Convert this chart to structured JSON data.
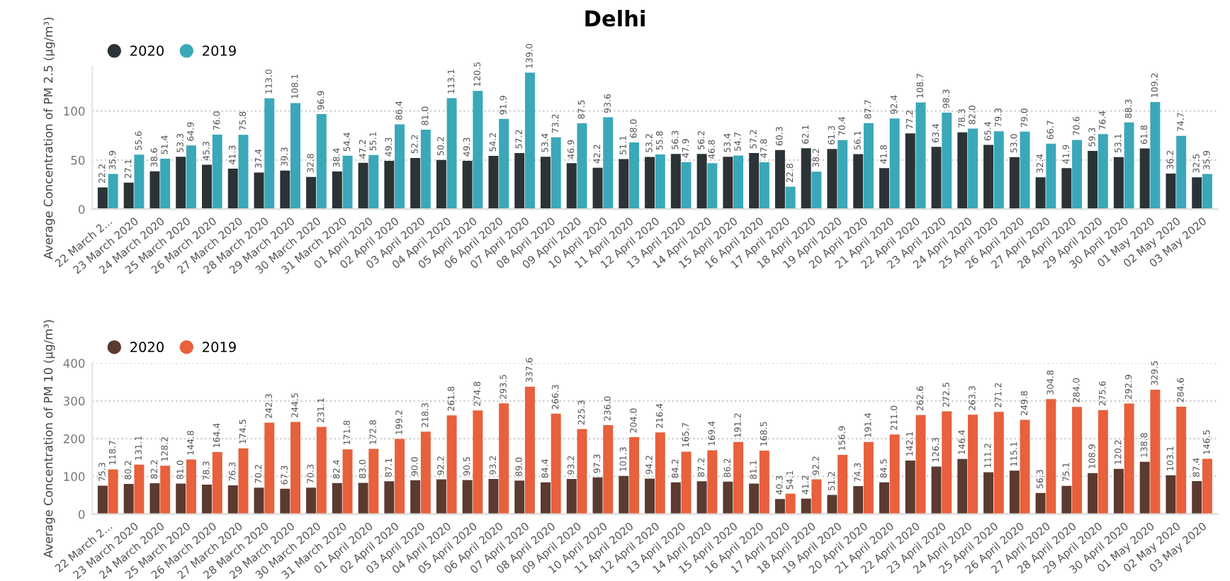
{
  "chart_data": [
    {
      "type": "bar",
      "title": "Delhi",
      "ylabel": "Average Concentration of PM 2.5 (µg/m³)",
      "categories": [
        "22 March 2...",
        "23 March 2020",
        "24 March 2020",
        "25 March 2020",
        "26 March 2020",
        "27 March 2020",
        "28 March 2020",
        "29 March 2020",
        "30 March 2020",
        "31 March 2020",
        "01 April 2020",
        "02 April 2020",
        "03 April 2020",
        "04 April 2020",
        "05 April 2020",
        "06 April 2020",
        "07 April 2020",
        "08 April 2020",
        "09 April 2020",
        "10 April 2020",
        "11 April 2020",
        "12 April 2020",
        "13 April 2020",
        "14 April 2020",
        "15 April 2020",
        "16 April 2020",
        "17 April 2020",
        "18 April 2020",
        "19 April 2020",
        "20 April 2020",
        "21 April 2020",
        "22 April 2020",
        "23 April 2020",
        "24 April 2020",
        "25 April 2020",
        "26 April 2020",
        "27 April 2020",
        "28 April 2020",
        "29 April 2020",
        "30 April 2020",
        "01 May 2020",
        "02 May 2020",
        "03 May 2020"
      ],
      "series": [
        {
          "name": "2020",
          "color": "#2b3336",
          "values": [
            22.2,
            27.1,
            38.6,
            53.3,
            45.3,
            41.3,
            37.4,
            39.3,
            32.8,
            38.4,
            47.2,
            49.3,
            52.2,
            50.2,
            49.3,
            54.2,
            57.2,
            53.4,
            46.9,
            42.2,
            51.1,
            53.2,
            56.3,
            56.2,
            53.4,
            57.2,
            60.3,
            62.1,
            61.3,
            56.1,
            41.8,
            77.2,
            63.4,
            78.3,
            65.4,
            53.0,
            32.4,
            41.9,
            59.3,
            53.1,
            61.8,
            36.2,
            32.5
          ],
          "value_labels": [
            "22.2",
            "27.1",
            "38.6",
            "53.3",
            "45.3",
            "41.3",
            "37.4",
            "39.3",
            "32.8",
            "38.4",
            "47.2",
            "49.3",
            "52.2",
            "50.2",
            "49.3",
            "54.2",
            "57.2",
            "53.4",
            "46.9",
            "42.2",
            "51.1",
            "53.2",
            "56.3",
            "56.2",
            "53.4",
            "57.2",
            "60.3",
            "62.1",
            "61.3",
            "56.1",
            "41.8",
            "77.2",
            "63.4",
            "78.3",
            "65.4",
            "53.0",
            "32.4",
            "41.9",
            "59.3",
            "53.1",
            "61.8",
            "36.2",
            "32.5"
          ]
        },
        {
          "name": "2019",
          "color": "#3aa8b8",
          "values": [
            35.9,
            55.6,
            51.4,
            64.9,
            76.0,
            75.8,
            113.0,
            108.1,
            96.9,
            54.4,
            55.1,
            86.4,
            81.0,
            113.1,
            120.5,
            91.9,
            139.0,
            73.2,
            87.5,
            93.6,
            68.0,
            55.8,
            47.9,
            46.8,
            54.7,
            47.8,
            22.8,
            38.2,
            70.4,
            87.7,
            92.4,
            108.7,
            98.3,
            82.0,
            79.3,
            79.0,
            66.7,
            70.6,
            76.4,
            88.3,
            109.2,
            74.7,
            35.9
          ],
          "value_labels": [
            "35.9",
            "55.6",
            "51.4",
            "64.9",
            "76.0",
            "75.8",
            "113.0",
            "108.1",
            "96.9",
            "54.4",
            "55.1",
            "86.4",
            "81.0",
            "113.1",
            "120.5",
            "91.9",
            "139.0",
            "73.2",
            "87.5",
            "93.6",
            "68.0",
            "55.8",
            "47.9",
            "46.8",
            "54.7",
            "47.8",
            "22.8",
            "38.2",
            "70.4",
            "87.7",
            "92.4",
            "108.7",
            "98.3",
            "82.0",
            "79.3",
            "79.0",
            "66.7",
            "70.6",
            "76.4",
            "88.3",
            "109.2",
            "74.7",
            "35.9"
          ]
        }
      ],
      "ylim": [
        0,
        145
      ],
      "yticks": [
        0,
        50,
        100
      ],
      "grid": "y",
      "legend": "top left"
    },
    {
      "type": "bar",
      "ylabel": "Average Concentration of PM 10 (µg/m³)",
      "categories": [
        "22 March 2...",
        "23 March 2020",
        "24 March 2020",
        "25 March 2020",
        "26 March 2020",
        "27 March 2020",
        "28 March 2020",
        "29 March 2020",
        "30 March 2020",
        "31 March 2020",
        "01 April 2020",
        "02 April 2020",
        "03 April 2020",
        "04 April 2020",
        "05 April 2020",
        "06 April 2020",
        "07 April 2020",
        "08 April 2020",
        "09 April 2020",
        "10 April 2020",
        "11 April 2020",
        "12 April 2020",
        "13 April 2020",
        "14 April 2020",
        "15 April 2020",
        "16 April 2020",
        "17 April 2020",
        "18 April 2020",
        "19 April 2020",
        "20 April 2020",
        "21 April 2020",
        "22 April 2020",
        "23 April 2020",
        "24 April 2020",
        "25 April 2020",
        "26 April 2020",
        "27 April 2020",
        "28 April 2020",
        "29 April 2020",
        "30 April 2020",
        "01 May 2020",
        "02 May 2020",
        "03 May 2020"
      ],
      "series": [
        {
          "name": "2020",
          "color": "#5b3a30",
          "values": [
            75.3,
            80.2,
            82.2,
            81.0,
            78.3,
            76.3,
            70.2,
            67.3,
            70.3,
            82.4,
            83.0,
            87.1,
            90.0,
            92.2,
            90.5,
            93.2,
            89.0,
            84.4,
            93.2,
            97.3,
            101.3,
            94.2,
            84.2,
            87.2,
            86.2,
            81.1,
            40.3,
            41.2,
            51.2,
            74.3,
            84.5,
            142.1,
            126.3,
            146.4,
            111.2,
            115.1,
            56.3,
            75.1,
            108.9,
            120.2,
            138.8,
            103.1,
            87.4
          ],
          "value_labels": [
            "75.3",
            "80.2",
            "82.2",
            "81.0",
            "78.3",
            "76.3",
            "70.2",
            "67.3",
            "70.3",
            "82.4",
            "83.0",
            "87.1",
            "90.0",
            "92.2",
            "90.5",
            "93.2",
            "89.0",
            "84.4",
            "93.2",
            "97.3",
            "101.3",
            "94.2",
            "84.2",
            "87.2",
            "86.2",
            "81.1",
            "40.3",
            "41.2",
            "51.2",
            "74.3",
            "84.5",
            "142.1",
            "126.3",
            "146.4",
            "111.2",
            "115.1",
            "56.3",
            "75.1",
            "108.9",
            "120.2",
            "138.8",
            "103.1",
            "87.4"
          ]
        },
        {
          "name": "2019",
          "color": "#e8603c",
          "values": [
            118.7,
            131.1,
            128.2,
            144.8,
            164.4,
            174.5,
            242.3,
            244.5,
            231.1,
            171.8,
            172.8,
            199.2,
            218.3,
            261.8,
            274.8,
            293.5,
            337.6,
            266.3,
            225.3,
            236.0,
            204.0,
            216.4,
            165.7,
            169.4,
            191.2,
            168.5,
            54.1,
            92.2,
            156.9,
            191.4,
            211.0,
            262.6,
            272.5,
            263.3,
            271.2,
            249.8,
            304.8,
            284.0,
            275.6,
            292.9,
            329.5,
            284.6,
            146.5
          ],
          "value_labels": [
            "118.7",
            "131.1",
            "128.2",
            "144.8",
            "164.4",
            "174.5",
            "242.3",
            "244.5",
            "231.1",
            "171.8",
            "172.8",
            "199.2",
            "218.3",
            "261.8",
            "274.8",
            "293.5",
            "337.6",
            "266.3",
            "225.3",
            "236.0",
            "204.0",
            "216.4",
            "165.7",
            "169.4",
            "191.2",
            "168.5",
            "54.1",
            "92.2",
            "156.9",
            "191.4",
            "211.0",
            "262.6",
            "272.5",
            "263.3",
            "271.2",
            "249.8",
            "304.8",
            "284.0",
            "275.6",
            "292.9",
            "329.5",
            "284.6",
            "146.5"
          ]
        }
      ],
      "ylim": [
        0,
        400
      ],
      "yticks": [
        0,
        100,
        200,
        300,
        400
      ],
      "grid": "y",
      "legend": "top left"
    }
  ]
}
